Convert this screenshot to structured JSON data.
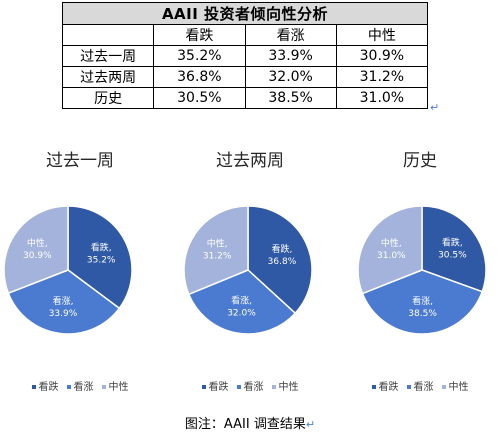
{
  "table": {
    "title": "AAII 投资者倾向性分析",
    "headers": [
      "",
      "看跌",
      "看涨",
      "中性"
    ],
    "rows": [
      {
        "label": "过去一周",
        "values": [
          "35.2%",
          "33.9%",
          "30.9%"
        ]
      },
      {
        "label": "过去两周",
        "values": [
          "36.8%",
          "32.0%",
          "31.2%"
        ]
      },
      {
        "label": "历史",
        "values": [
          "30.5%",
          "38.5%",
          "31.0%"
        ]
      }
    ]
  },
  "colors": {
    "bearish": "#2f58a5",
    "bullish": "#4a7bd0",
    "neutral": "#a3b3db"
  },
  "chart_data": [
    {
      "type": "pie",
      "title": "过去一周",
      "slices": [
        {
          "label": "看跌",
          "value": 35.2,
          "text": "看跌,\n35.2%"
        },
        {
          "label": "看涨",
          "value": 33.9,
          "text": "看涨,\n33.9%"
        },
        {
          "label": "中性",
          "value": 30.9,
          "text": "中性,\n30.9%"
        }
      ],
      "legend": [
        "看跌",
        "看涨",
        "中性"
      ],
      "legend_position": "bottom"
    },
    {
      "type": "pie",
      "title": "过去两周",
      "slices": [
        {
          "label": "看跌",
          "value": 36.8,
          "text": "看跌,\n36.8%"
        },
        {
          "label": "看涨",
          "value": 32.0,
          "text": "看涨,\n32.0%"
        },
        {
          "label": "中性",
          "value": 31.2,
          "text": "中性,\n31.2%"
        }
      ],
      "legend": [
        "看跌",
        "看涨",
        "中性"
      ],
      "legend_position": "bottom"
    },
    {
      "type": "pie",
      "title": "历史",
      "slices": [
        {
          "label": "看跌",
          "value": 30.5,
          "text": "看跌,\n30.5%"
        },
        {
          "label": "看涨",
          "value": 38.5,
          "text": "看涨,\n38.5%"
        },
        {
          "label": "中性",
          "value": 31.0,
          "text": "中性,\n31.0%"
        }
      ],
      "legend": [
        "看跌",
        "看涨",
        "中性"
      ],
      "legend_position": "bottom"
    }
  ],
  "caption": "图注：AAII 调查结果",
  "return_mark": "↵"
}
